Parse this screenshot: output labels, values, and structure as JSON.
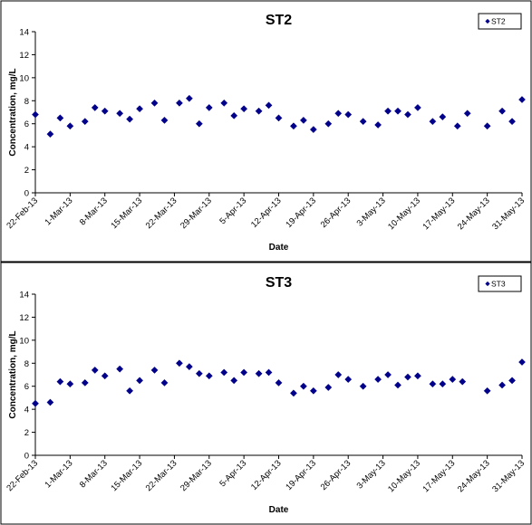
{
  "chart_data": [
    {
      "type": "scatter",
      "title": "ST2",
      "xlabel": "Date",
      "ylabel": "Concentration, mg/L",
      "ylim": [
        0,
        14
      ],
      "yticks": [
        0,
        2,
        4,
        6,
        8,
        10,
        12,
        14
      ],
      "xlim": [
        "2013-02-22",
        "2013-05-31"
      ],
      "xtick_labels": [
        "22-Feb-13",
        "1-Mar-13",
        "8-Mar-13",
        "15-Mar-13",
        "22-Mar-13",
        "29-Mar-13",
        "5-Apr-13",
        "12-Apr-13",
        "19-Apr-13",
        "26-Apr-13",
        "3-May-13",
        "10-May-13",
        "17-May-13",
        "24-May-13",
        "31-May-13"
      ],
      "grid": "none",
      "legend": "top-right",
      "series": [
        {
          "name": "ST2",
          "color": "#00008B",
          "points": [
            {
              "x": "2013-02-22",
              "y": 6.8
            },
            {
              "x": "2013-02-25",
              "y": 5.1
            },
            {
              "x": "2013-02-27",
              "y": 6.5
            },
            {
              "x": "2013-03-01",
              "y": 5.8
            },
            {
              "x": "2013-03-04",
              "y": 6.2
            },
            {
              "x": "2013-03-06",
              "y": 7.4
            },
            {
              "x": "2013-03-08",
              "y": 7.1
            },
            {
              "x": "2013-03-11",
              "y": 6.9
            },
            {
              "x": "2013-03-13",
              "y": 6.4
            },
            {
              "x": "2013-03-15",
              "y": 7.3
            },
            {
              "x": "2013-03-18",
              "y": 7.8
            },
            {
              "x": "2013-03-20",
              "y": 6.3
            },
            {
              "x": "2013-03-23",
              "y": 7.8
            },
            {
              "x": "2013-03-25",
              "y": 8.2
            },
            {
              "x": "2013-03-27",
              "y": 6.0
            },
            {
              "x": "2013-03-29",
              "y": 7.4
            },
            {
              "x": "2013-04-01",
              "y": 7.8
            },
            {
              "x": "2013-04-03",
              "y": 6.7
            },
            {
              "x": "2013-04-05",
              "y": 7.3
            },
            {
              "x": "2013-04-08",
              "y": 7.1
            },
            {
              "x": "2013-04-10",
              "y": 7.6
            },
            {
              "x": "2013-04-12",
              "y": 6.5
            },
            {
              "x": "2013-04-15",
              "y": 5.8
            },
            {
              "x": "2013-04-17",
              "y": 6.3
            },
            {
              "x": "2013-04-19",
              "y": 5.5
            },
            {
              "x": "2013-04-22",
              "y": 6.0
            },
            {
              "x": "2013-04-24",
              "y": 6.9
            },
            {
              "x": "2013-04-26",
              "y": 6.8
            },
            {
              "x": "2013-04-29",
              "y": 6.2
            },
            {
              "x": "2013-05-02",
              "y": 5.9
            },
            {
              "x": "2013-05-04",
              "y": 7.1
            },
            {
              "x": "2013-05-06",
              "y": 7.1
            },
            {
              "x": "2013-05-08",
              "y": 6.8
            },
            {
              "x": "2013-05-10",
              "y": 7.4
            },
            {
              "x": "2013-05-13",
              "y": 6.2
            },
            {
              "x": "2013-05-15",
              "y": 6.6
            },
            {
              "x": "2013-05-18",
              "y": 5.8
            },
            {
              "x": "2013-05-20",
              "y": 6.9
            },
            {
              "x": "2013-05-24",
              "y": 5.8
            },
            {
              "x": "2013-05-27",
              "y": 7.1
            },
            {
              "x": "2013-05-29",
              "y": 6.2
            },
            {
              "x": "2013-05-31",
              "y": 8.1
            }
          ]
        }
      ]
    },
    {
      "type": "scatter",
      "title": "ST3",
      "xlabel": "Date",
      "ylabel": "Concentration, mg/L",
      "ylim": [
        0,
        14
      ],
      "yticks": [
        0,
        2,
        4,
        6,
        8,
        10,
        12,
        14
      ],
      "xlim": [
        "2013-02-22",
        "2013-05-31"
      ],
      "xtick_labels": [
        "22-Feb-13",
        "1-Mar-13",
        "8-Mar-13",
        "15-Mar-13",
        "22-Mar-13",
        "29-Mar-13",
        "5-Apr-13",
        "12-Apr-13",
        "19-Apr-13",
        "26-Apr-13",
        "3-May-13",
        "10-May-13",
        "17-May-13",
        "24-May-13",
        "31-May-13"
      ],
      "grid": "none",
      "legend": "top-right",
      "series": [
        {
          "name": "ST3",
          "color": "#00008B",
          "points": [
            {
              "x": "2013-02-22",
              "y": 4.5
            },
            {
              "x": "2013-02-25",
              "y": 4.6
            },
            {
              "x": "2013-02-27",
              "y": 6.4
            },
            {
              "x": "2013-03-01",
              "y": 6.2
            },
            {
              "x": "2013-03-04",
              "y": 6.3
            },
            {
              "x": "2013-03-06",
              "y": 7.4
            },
            {
              "x": "2013-03-08",
              "y": 6.9
            },
            {
              "x": "2013-03-11",
              "y": 7.5
            },
            {
              "x": "2013-03-13",
              "y": 5.6
            },
            {
              "x": "2013-03-15",
              "y": 6.5
            },
            {
              "x": "2013-03-18",
              "y": 7.4
            },
            {
              "x": "2013-03-20",
              "y": 6.3
            },
            {
              "x": "2013-03-23",
              "y": 8.0
            },
            {
              "x": "2013-03-25",
              "y": 7.7
            },
            {
              "x": "2013-03-27",
              "y": 7.1
            },
            {
              "x": "2013-03-29",
              "y": 6.9
            },
            {
              "x": "2013-04-01",
              "y": 7.2
            },
            {
              "x": "2013-04-03",
              "y": 6.5
            },
            {
              "x": "2013-04-05",
              "y": 7.2
            },
            {
              "x": "2013-04-08",
              "y": 7.1
            },
            {
              "x": "2013-04-10",
              "y": 7.2
            },
            {
              "x": "2013-04-12",
              "y": 6.3
            },
            {
              "x": "2013-04-15",
              "y": 5.4
            },
            {
              "x": "2013-04-17",
              "y": 6.0
            },
            {
              "x": "2013-04-19",
              "y": 5.6
            },
            {
              "x": "2013-04-22",
              "y": 5.9
            },
            {
              "x": "2013-04-24",
              "y": 7.0
            },
            {
              "x": "2013-04-26",
              "y": 6.6
            },
            {
              "x": "2013-04-29",
              "y": 6.0
            },
            {
              "x": "2013-05-02",
              "y": 6.6
            },
            {
              "x": "2013-05-04",
              "y": 7.0
            },
            {
              "x": "2013-05-06",
              "y": 6.1
            },
            {
              "x": "2013-05-08",
              "y": 6.8
            },
            {
              "x": "2013-05-10",
              "y": 6.9
            },
            {
              "x": "2013-05-13",
              "y": 6.2
            },
            {
              "x": "2013-05-15",
              "y": 6.2
            },
            {
              "x": "2013-05-17",
              "y": 6.6
            },
            {
              "x": "2013-05-19",
              "y": 6.4
            },
            {
              "x": "2013-05-24",
              "y": 5.6
            },
            {
              "x": "2013-05-27",
              "y": 6.1
            },
            {
              "x": "2013-05-29",
              "y": 6.5
            },
            {
              "x": "2013-05-31",
              "y": 8.1
            }
          ]
        }
      ]
    }
  ]
}
